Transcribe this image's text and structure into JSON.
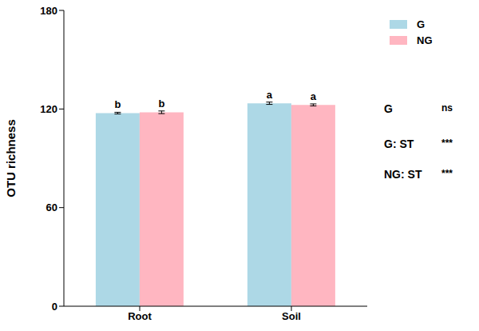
{
  "chart_data": {
    "type": "bar",
    "y_label": "OTU richness",
    "categories": [
      "Root",
      "Soil"
    ],
    "series": [
      {
        "name": "G",
        "color": "#add8e6",
        "values": [
          117.5,
          123.5
        ],
        "errors": [
          0.5,
          0.7
        ],
        "letters": [
          "b",
          "a"
        ]
      },
      {
        "name": "NG",
        "color": "#ffb6c1",
        "values": [
          118,
          122.5
        ],
        "errors": [
          0.8,
          0.6
        ],
        "letters": [
          "b",
          "a"
        ]
      }
    ],
    "ylim": [
      0,
      180
    ],
    "yticks": [
      0,
      60,
      120,
      180
    ],
    "grid": false,
    "legend": "upper right",
    "annotations": [
      {
        "label": "G",
        "significance": "ns"
      },
      {
        "label": "G: ST",
        "significance": "***"
      },
      {
        "label": "NG: ST",
        "significance": "***"
      }
    ]
  }
}
